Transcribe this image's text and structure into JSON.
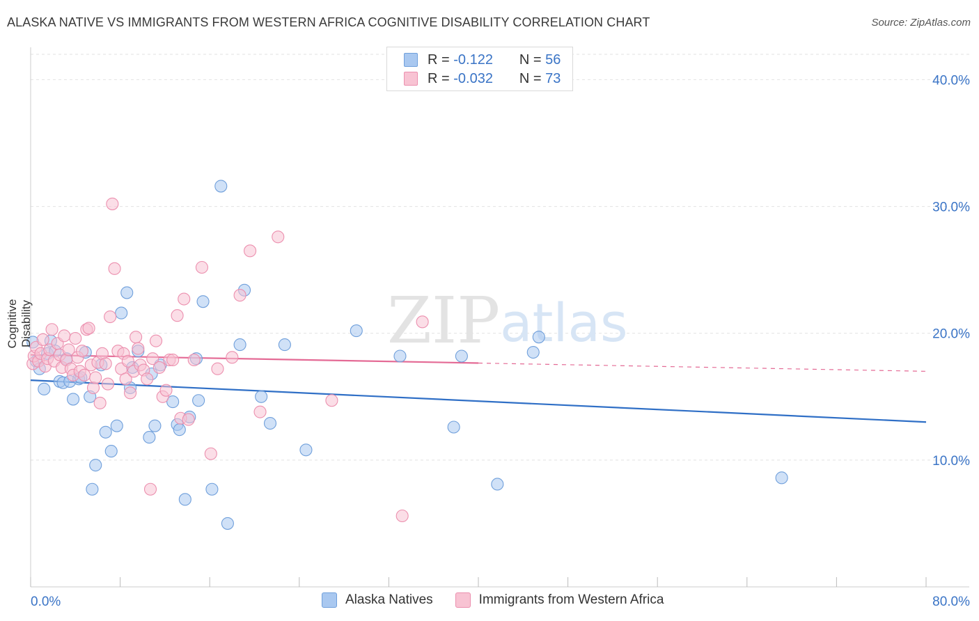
{
  "title": "ALASKA NATIVE VS IMMIGRANTS FROM WESTERN AFRICA COGNITIVE DISABILITY CORRELATION CHART",
  "source": "Source: ZipAtlas.com",
  "watermark": {
    "zip": "ZIP",
    "atlas": "atlas"
  },
  "legend": {
    "rows": [
      {
        "r_label": "R =",
        "r_value": "-0.122",
        "n_label": "N =",
        "n_value": "56",
        "color": "#a9c8f0",
        "border": "#6f9fdb"
      },
      {
        "r_label": "R =",
        "r_value": "-0.032",
        "n_label": "N =",
        "n_value": "73",
        "color": "#f8c3d3",
        "border": "#ec8fae"
      }
    ]
  },
  "chart_data": {
    "type": "scatter",
    "title": "ALASKA NATIVE VS IMMIGRANTS FROM WESTERN AFRICA COGNITIVE DISABILITY CORRELATION CHART",
    "xlabel": "",
    "ylabel": "Cognitive Disability",
    "xlim": [
      0,
      80
    ],
    "ylim": [
      0,
      42
    ],
    "x_tick_labels": [
      "0.0%",
      "80.0%"
    ],
    "y_ticks": [
      10,
      20,
      30,
      40
    ],
    "y_tick_labels": [
      "10.0%",
      "20.0%",
      "30.0%",
      "40.0%"
    ],
    "grid": true,
    "legend_position": "bottom",
    "series": [
      {
        "name": "Alaska Natives",
        "color": "#6f9fdb",
        "fill": "#a9c8f0",
        "trend": {
          "x": [
            0,
            80
          ],
          "y": [
            16.3,
            13.0
          ],
          "solid_to": 80
        },
        "points": [
          [
            0.2,
            19.3
          ],
          [
            0.5,
            17.8
          ],
          [
            0.8,
            17.2
          ],
          [
            1.2,
            15.6
          ],
          [
            1.5,
            18.4
          ],
          [
            1.8,
            19.4
          ],
          [
            2.2,
            18.6
          ],
          [
            2.6,
            16.2
          ],
          [
            2.9,
            16.1
          ],
          [
            3.2,
            18.0
          ],
          [
            3.5,
            16.2
          ],
          [
            3.8,
            14.8
          ],
          [
            4.3,
            16.4
          ],
          [
            4.5,
            16.5
          ],
          [
            4.9,
            18.5
          ],
          [
            5.3,
            15.0
          ],
          [
            5.5,
            7.7
          ],
          [
            5.8,
            9.6
          ],
          [
            6.3,
            17.5
          ],
          [
            6.7,
            12.2
          ],
          [
            7.2,
            10.7
          ],
          [
            7.7,
            12.7
          ],
          [
            8.1,
            21.6
          ],
          [
            8.6,
            23.2
          ],
          [
            8.9,
            15.7
          ],
          [
            9.1,
            17.3
          ],
          [
            9.6,
            18.6
          ],
          [
            10.6,
            11.8
          ],
          [
            10.8,
            16.8
          ],
          [
            11.1,
            12.7
          ],
          [
            11.6,
            17.5
          ],
          [
            12.7,
            14.6
          ],
          [
            13.1,
            12.8
          ],
          [
            13.3,
            12.4
          ],
          [
            13.8,
            6.9
          ],
          [
            14.2,
            13.4
          ],
          [
            14.8,
            18.0
          ],
          [
            15.0,
            14.7
          ],
          [
            15.4,
            22.5
          ],
          [
            16.2,
            7.7
          ],
          [
            17.0,
            31.6
          ],
          [
            17.6,
            5.0
          ],
          [
            18.7,
            19.1
          ],
          [
            19.1,
            23.4
          ],
          [
            20.6,
            15.0
          ],
          [
            21.4,
            12.9
          ],
          [
            22.7,
            19.1
          ],
          [
            24.6,
            10.8
          ],
          [
            29.1,
            20.2
          ],
          [
            33.0,
            18.2
          ],
          [
            37.8,
            12.6
          ],
          [
            38.5,
            18.2
          ],
          [
            41.7,
            8.1
          ],
          [
            44.9,
            18.5
          ],
          [
            45.4,
            19.7
          ],
          [
            67.1,
            8.6
          ]
        ]
      },
      {
        "name": "Immigrants from Western Africa",
        "color": "#ec8fae",
        "fill": "#f8c3d3",
        "trend": {
          "x": [
            0,
            80
          ],
          "y": [
            18.3,
            17.0
          ],
          "solid_to": 40
        },
        "points": [
          [
            0.2,
            17.6
          ],
          [
            0.3,
            18.2
          ],
          [
            0.5,
            18.9
          ],
          [
            0.7,
            17.8
          ],
          [
            0.9,
            18.4
          ],
          [
            1.1,
            19.5
          ],
          [
            1.3,
            17.4
          ],
          [
            1.5,
            18.0
          ],
          [
            1.7,
            18.7
          ],
          [
            1.9,
            20.3
          ],
          [
            2.1,
            17.8
          ],
          [
            2.4,
            19.2
          ],
          [
            2.6,
            18.3
          ],
          [
            2.8,
            17.3
          ],
          [
            3.0,
            19.8
          ],
          [
            3.2,
            17.9
          ],
          [
            3.4,
            18.7
          ],
          [
            3.6,
            17.2
          ],
          [
            3.8,
            16.7
          ],
          [
            4.0,
            19.6
          ],
          [
            4.2,
            18.1
          ],
          [
            4.4,
            17.0
          ],
          [
            4.6,
            18.6
          ],
          [
            4.8,
            16.7
          ],
          [
            5.0,
            20.3
          ],
          [
            5.2,
            20.4
          ],
          [
            5.4,
            17.5
          ],
          [
            5.6,
            15.7
          ],
          [
            5.8,
            16.5
          ],
          [
            6.0,
            17.7
          ],
          [
            6.2,
            14.5
          ],
          [
            6.4,
            18.4
          ],
          [
            6.7,
            17.6
          ],
          [
            6.9,
            16.0
          ],
          [
            7.1,
            21.3
          ],
          [
            7.3,
            30.2
          ],
          [
            7.5,
            25.1
          ],
          [
            7.8,
            18.6
          ],
          [
            8.1,
            17.2
          ],
          [
            8.3,
            18.4
          ],
          [
            8.5,
            16.4
          ],
          [
            8.7,
            17.8
          ],
          [
            8.9,
            15.3
          ],
          [
            9.2,
            17.0
          ],
          [
            9.4,
            19.7
          ],
          [
            9.6,
            18.8
          ],
          [
            9.8,
            17.5
          ],
          [
            10.1,
            17.1
          ],
          [
            10.4,
            16.4
          ],
          [
            10.7,
            7.7
          ],
          [
            10.9,
            18.0
          ],
          [
            11.2,
            19.4
          ],
          [
            11.5,
            17.3
          ],
          [
            11.8,
            15.0
          ],
          [
            12.1,
            15.5
          ],
          [
            12.4,
            17.9
          ],
          [
            12.7,
            17.9
          ],
          [
            13.1,
            21.4
          ],
          [
            13.4,
            13.3
          ],
          [
            13.7,
            22.7
          ],
          [
            14.1,
            13.2
          ],
          [
            14.6,
            17.9
          ],
          [
            15.3,
            25.2
          ],
          [
            16.1,
            10.5
          ],
          [
            16.7,
            17.2
          ],
          [
            18.0,
            18.1
          ],
          [
            18.7,
            23.0
          ],
          [
            19.6,
            26.5
          ],
          [
            20.5,
            13.8
          ],
          [
            22.1,
            27.6
          ],
          [
            26.9,
            14.7
          ],
          [
            33.2,
            5.6
          ],
          [
            35.0,
            20.9
          ]
        ]
      }
    ]
  }
}
